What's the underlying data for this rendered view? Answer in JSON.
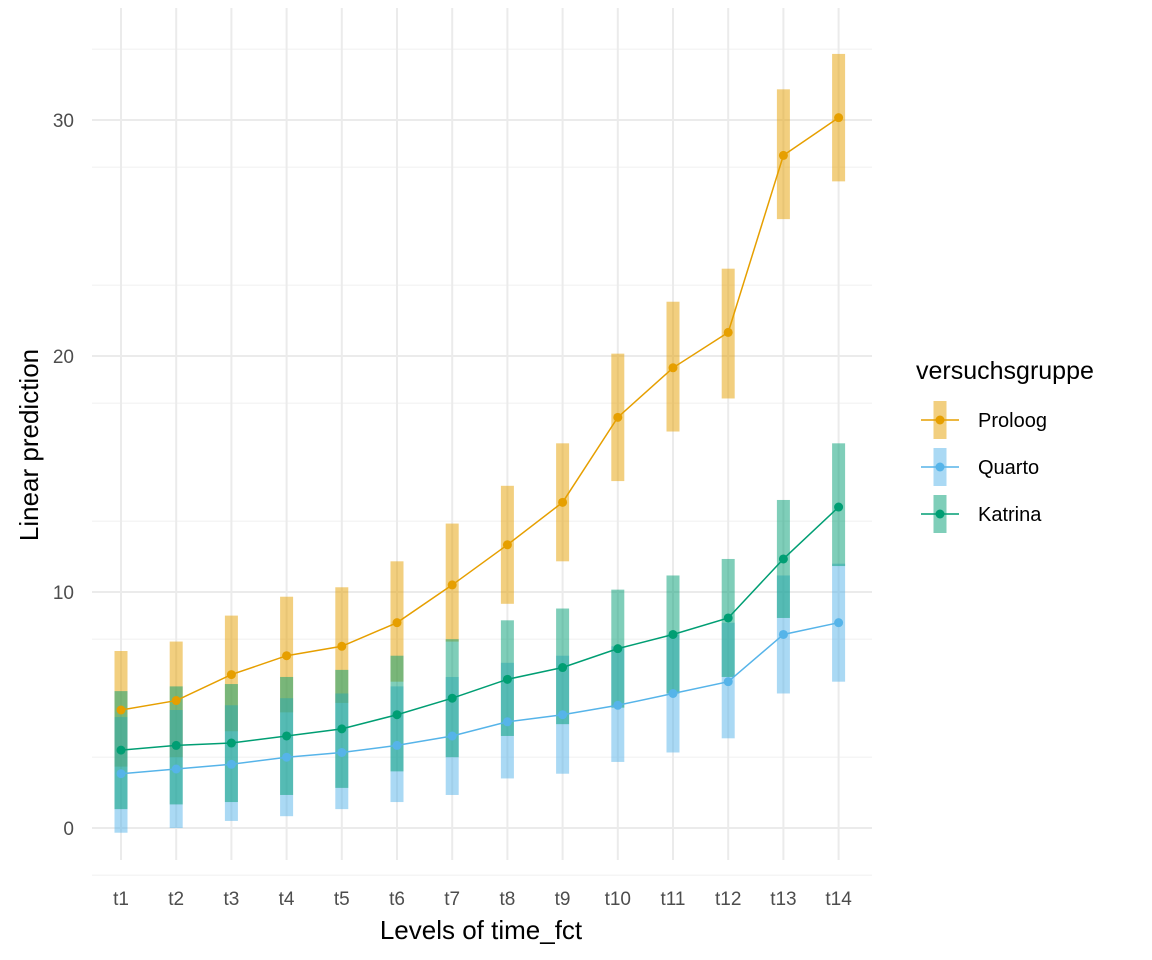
{
  "chart_data": {
    "type": "line",
    "xlabel": "Levels of time_fct",
    "ylabel": "Linear prediction",
    "categories": [
      "t1",
      "t2",
      "t3",
      "t4",
      "t5",
      "t6",
      "t7",
      "t8",
      "t9",
      "t10",
      "t11",
      "t12",
      "t13",
      "t14"
    ],
    "ylim": [
      -2,
      34
    ],
    "yticks": [
      0,
      10,
      20,
      30
    ],
    "grid": true,
    "legend": {
      "title": "versuchsgruppe",
      "position": "right"
    },
    "series": [
      {
        "name": "Proloog",
        "color": "#E69F00",
        "values": [
          5.0,
          5.4,
          6.5,
          7.3,
          7.7,
          8.7,
          10.3,
          12.0,
          13.8,
          17.4,
          19.5,
          21.0,
          28.5,
          30.1
        ],
        "lower": [
          2.6,
          3.0,
          4.1,
          4.9,
          5.3,
          6.2,
          7.9,
          9.5,
          11.3,
          14.7,
          16.8,
          18.2,
          25.8,
          27.4
        ],
        "upper": [
          7.5,
          7.9,
          9.0,
          9.8,
          10.2,
          11.3,
          12.9,
          14.5,
          16.3,
          20.1,
          22.3,
          23.7,
          31.3,
          32.8
        ]
      },
      {
        "name": "Quarto",
        "color": "#56B4E9",
        "values": [
          2.3,
          2.5,
          2.7,
          3.0,
          3.2,
          3.5,
          3.9,
          4.5,
          4.8,
          5.2,
          5.7,
          6.2,
          8.2,
          8.7
        ],
        "lower": [
          -0.2,
          0.0,
          0.3,
          0.5,
          0.8,
          1.1,
          1.4,
          2.1,
          2.3,
          2.8,
          3.2,
          3.8,
          5.7,
          6.2
        ],
        "upper": [
          4.7,
          5.0,
          5.2,
          5.5,
          5.7,
          6.0,
          6.4,
          7.0,
          7.3,
          7.7,
          8.2,
          8.7,
          10.7,
          11.2
        ]
      },
      {
        "name": "Katrina",
        "color": "#009E73",
        "values": [
          3.3,
          3.5,
          3.6,
          3.9,
          4.2,
          4.8,
          5.5,
          6.3,
          6.8,
          7.6,
          8.2,
          8.9,
          11.4,
          13.6
        ],
        "lower": [
          0.8,
          1.0,
          1.1,
          1.4,
          1.7,
          2.4,
          3.0,
          3.9,
          4.4,
          5.1,
          5.7,
          6.4,
          8.9,
          11.1
        ],
        "upper": [
          5.8,
          6.0,
          6.1,
          6.4,
          6.7,
          7.3,
          8.0,
          8.8,
          9.3,
          10.1,
          10.7,
          11.4,
          13.9,
          16.3
        ]
      }
    ]
  }
}
